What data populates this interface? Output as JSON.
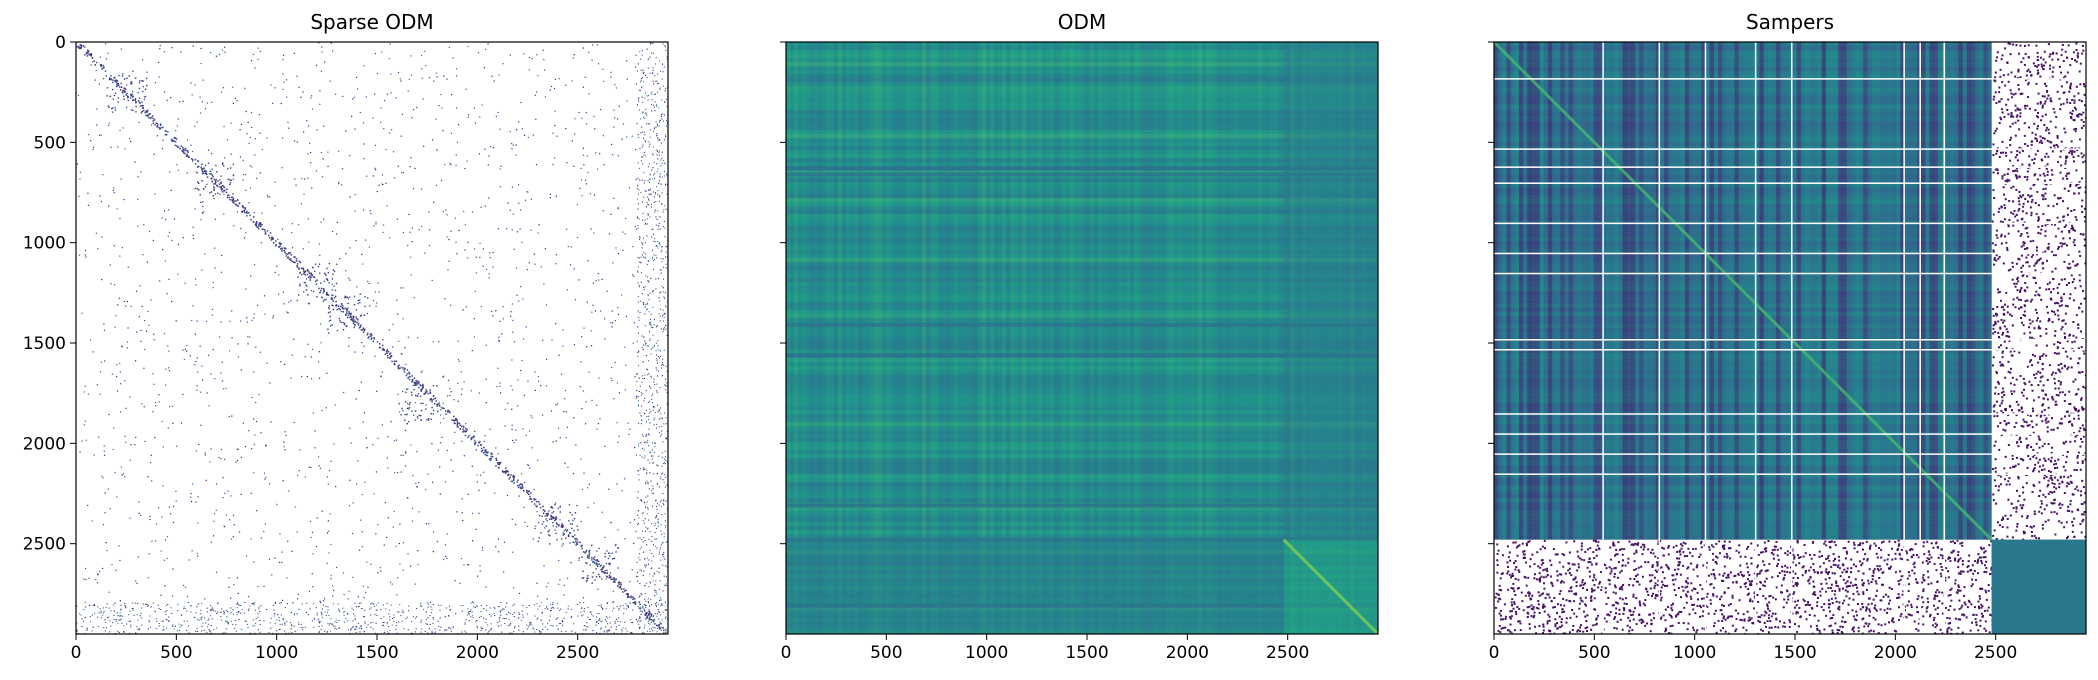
{
  "chart_data": [
    {
      "type": "heatmap",
      "title": "Sparse ODM",
      "xlabel": "",
      "ylabel": "",
      "xlim": [
        0,
        2950
      ],
      "ylim": [
        2950,
        0
      ],
      "xticks": [
        0,
        500,
        1000,
        1500,
        2000,
        2500
      ],
      "yticks": [
        0,
        500,
        1000,
        1500,
        2000,
        2500
      ],
      "colormap": "viridis",
      "grid": false,
      "description_values": {
        "matrix_size": 2950,
        "diagonal_band": true,
        "dense_block_rows": [
          2780,
          2950
        ],
        "dense_block_cols": [
          2780,
          2950
        ]
      }
    },
    {
      "type": "heatmap",
      "title": "ODM",
      "xlabel": "",
      "ylabel": "",
      "xlim": [
        0,
        2950
      ],
      "ylim": [
        2950,
        0
      ],
      "xticks": [
        0,
        500,
        1000,
        1500,
        2000,
        2500
      ],
      "yticks": [
        0,
        500,
        1000,
        1500,
        2000,
        2500
      ],
      "colormap": "viridis",
      "grid": false,
      "description_values": {
        "matrix_size": 2950,
        "block_boundary": 2480
      }
    },
    {
      "type": "heatmap",
      "title": "Sampers",
      "xlabel": "",
      "ylabel": "",
      "xlim": [
        0,
        2950
      ],
      "ylim": [
        2950,
        0
      ],
      "xticks": [
        0,
        500,
        1000,
        1500,
        2000,
        2500
      ],
      "yticks": [
        0,
        500,
        1000,
        1500,
        2000,
        2500
      ],
      "colormap": "viridis",
      "grid": false,
      "description_values": {
        "matrix_size": 2950,
        "block_boundary": 2480
      }
    }
  ],
  "colors": {
    "viridis_dark": "#440154",
    "viridis_blue": "#31688e",
    "viridis_teal": "#21918c",
    "viridis_green": "#35b779",
    "viridis_yellow": "#fde725",
    "axis": "#000000",
    "background": "#ffffff"
  }
}
